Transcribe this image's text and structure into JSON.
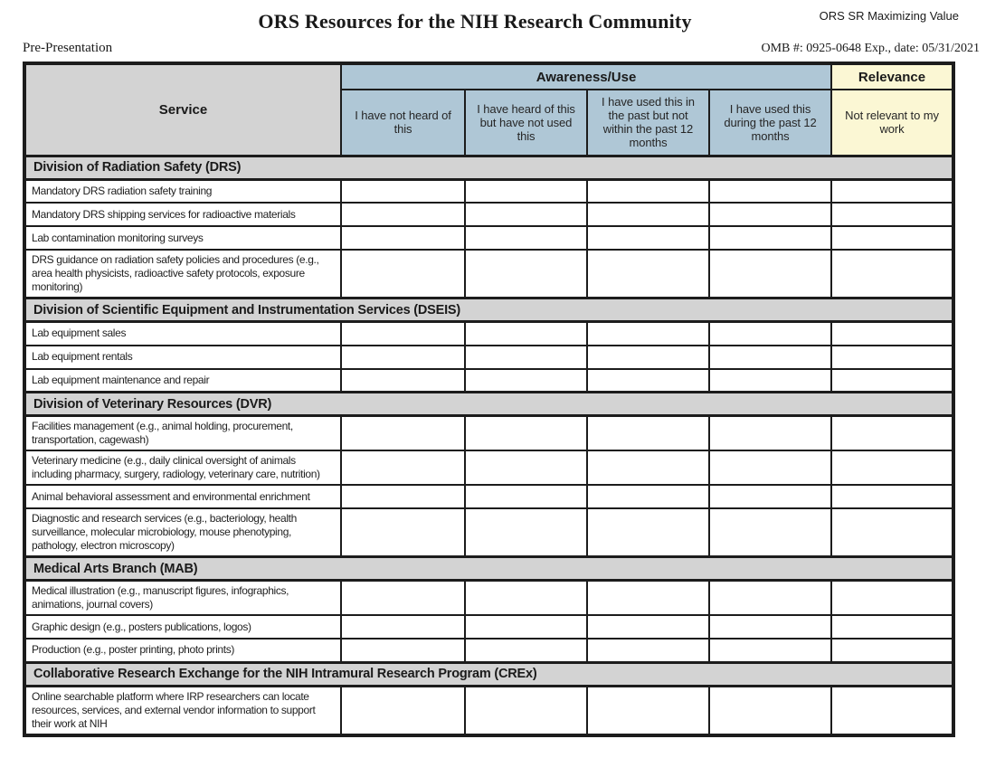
{
  "header": {
    "title": "ORS Resources for the NIH Research Community",
    "project_label": "ORS SR Maximizing Value",
    "stage_label": "Pre-Presentation",
    "omb_label": "OMB #: 0925-0648 Exp., date: 05/31/2021"
  },
  "table": {
    "service_header": "Service",
    "group_headers": {
      "awareness": "Awareness/Use",
      "relevance": "Relevance"
    },
    "response_columns": [
      "I have not heard of this",
      "I have heard of this but have not used this",
      "I have used this in the past but not within the past 12 months",
      "I have used this during the past 12 months",
      "Not relevant to my work"
    ],
    "sections": [
      {
        "title": "Division of Radiation Safety (DRS)",
        "rows": [
          "Mandatory DRS radiation safety training",
          "Mandatory DRS shipping services for radioactive materials",
          "Lab contamination monitoring surveys",
          "DRS guidance on radiation safety policies and procedures (e.g., area health physicists, radioactive safety protocols, exposure monitoring)"
        ]
      },
      {
        "title": "Division of Scientific Equipment and Instrumentation Services (DSEIS)",
        "rows": [
          "Lab equipment sales",
          "Lab equipment rentals",
          "Lab equipment maintenance and repair"
        ]
      },
      {
        "title": "Division of Veterinary Resources (DVR)",
        "rows": [
          "Facilities management (e.g., animal holding, procurement, transportation, cagewash)",
          "Veterinary medicine (e.g., daily clinical oversight of animals including pharmacy, surgery, radiology, veterinary care, nutrition)",
          "Animal behavioral assessment and environmental enrichment",
          "Diagnostic and research services (e.g., bacteriology, health surveillance, molecular microbiology, mouse phenotyping, pathology, electron microscopy)"
        ]
      },
      {
        "title": "Medical Arts Branch (MAB)",
        "rows": [
          "Medical illustration (e.g., manuscript figures, infographics, animations, journal covers)",
          "Graphic design (e.g., posters publications, logos)",
          "Production (e.g., poster printing, photo prints)"
        ]
      },
      {
        "title": "Collaborative Research Exchange for the NIH Intramural Research Program (CREx)",
        "rows": [
          "Online searchable platform where IRP researchers can locate resources, services, and external vendor information to support their work at NIH"
        ]
      }
    ]
  },
  "colors": {
    "awareness_blue": "#AFC7D6",
    "relevance_yellow": "#FBF7D4",
    "section_gray": "#D3D3D3",
    "border_black": "#1C1C1C"
  }
}
